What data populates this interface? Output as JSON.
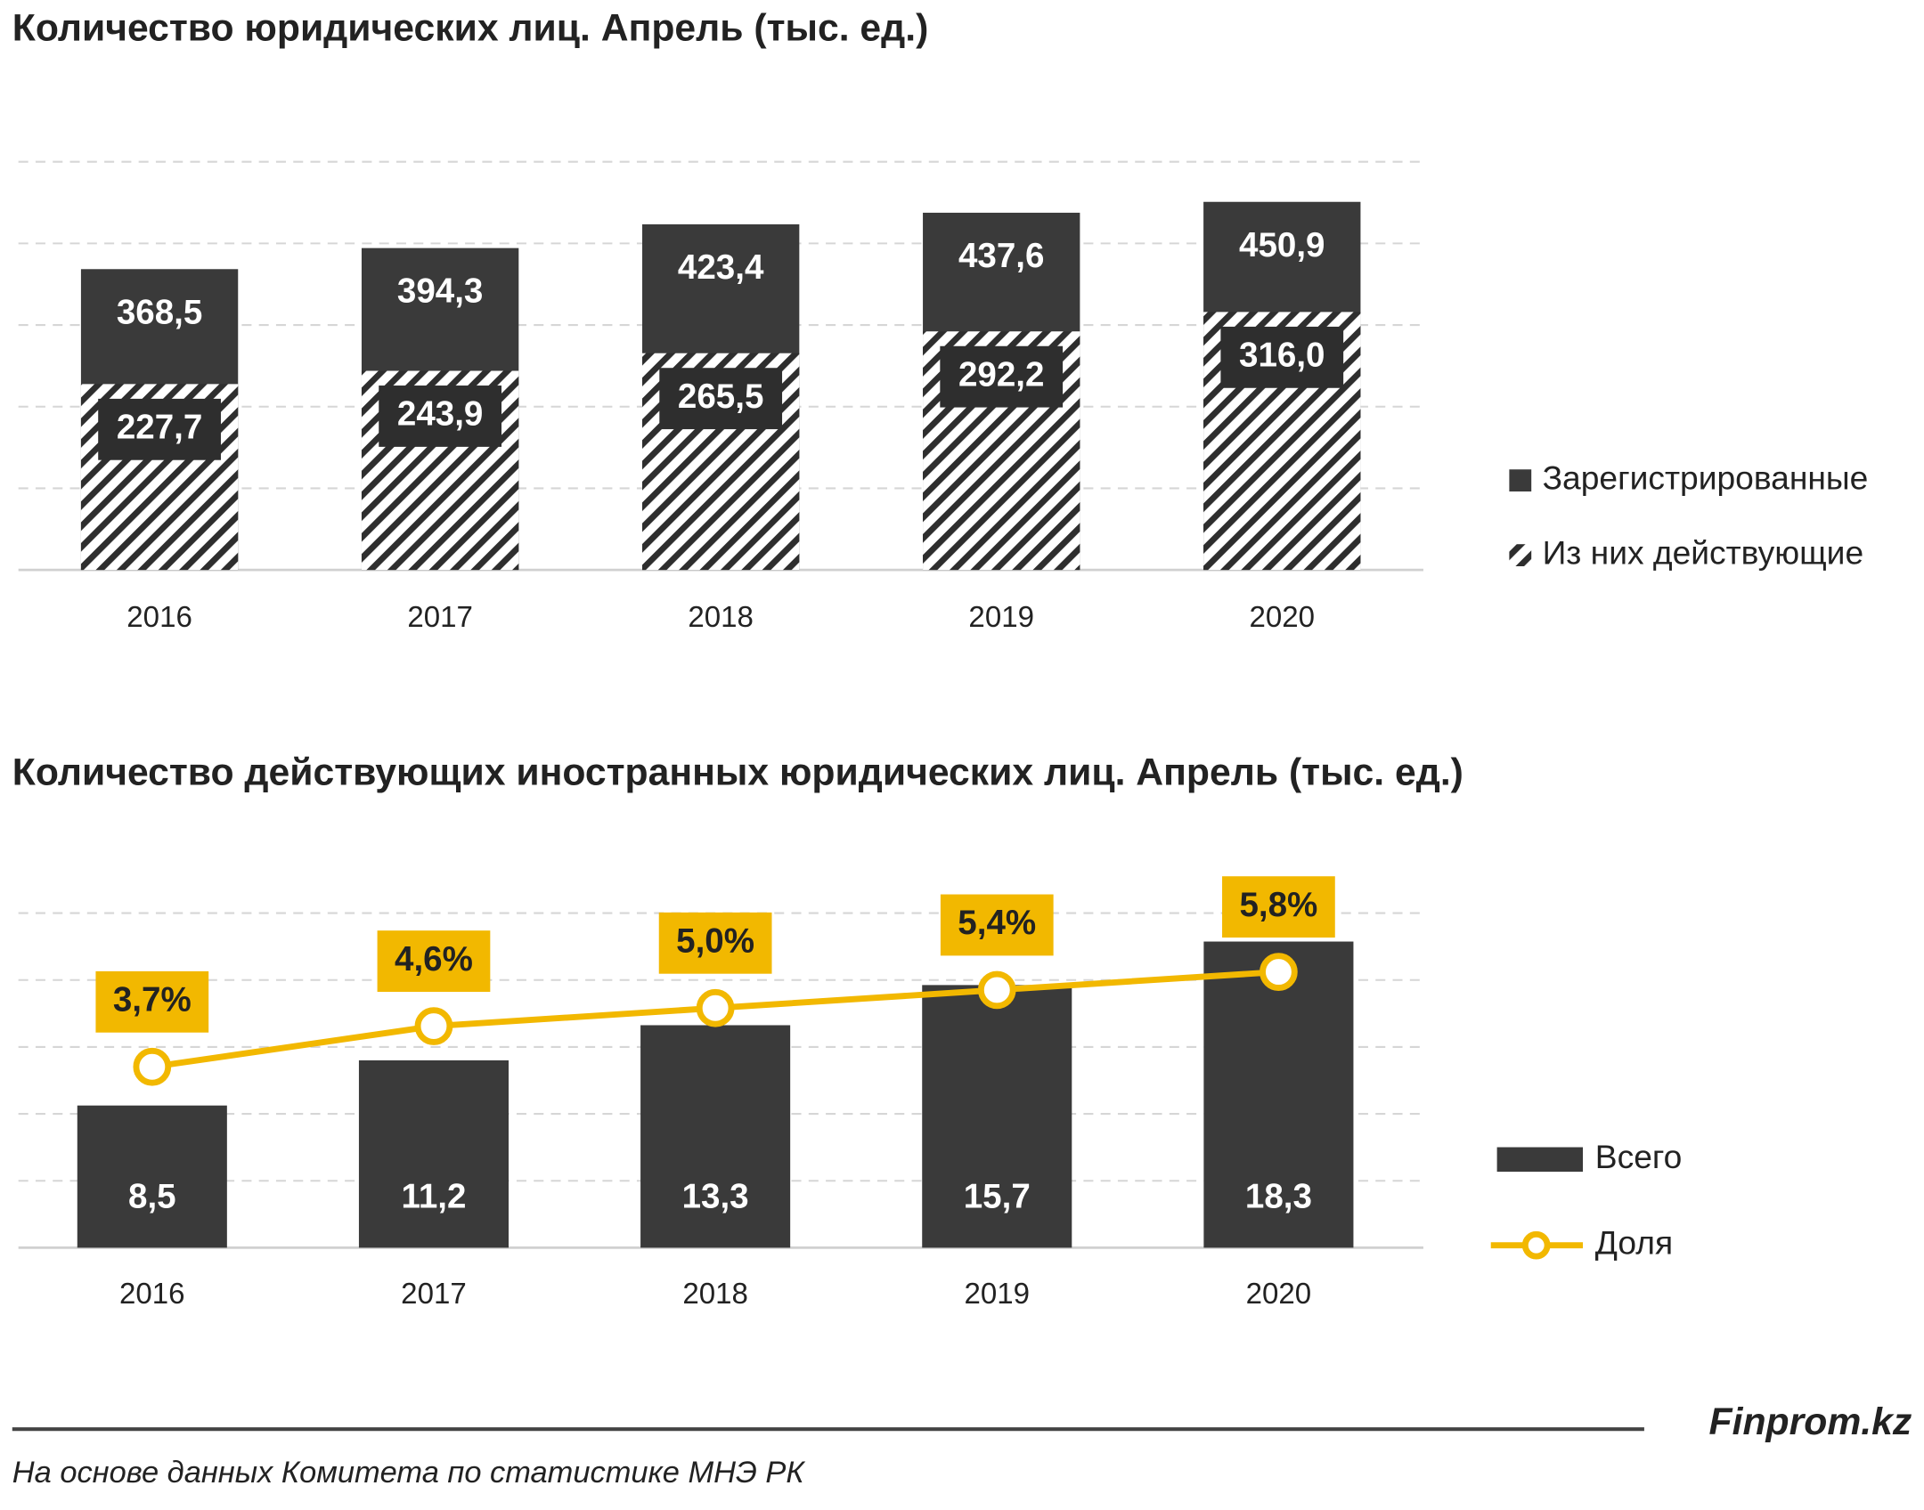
{
  "chart_data": [
    {
      "type": "overlap_bar",
      "title": "Количество юридических лиц. Апрель (тыс. ед.)",
      "categories": [
        "2016",
        "2017",
        "2018",
        "2019",
        "2020"
      ],
      "series": [
        {
          "name": "Зарегистрированные",
          "color": "#3a3a3a",
          "values": [
            368.5,
            394.3,
            423.4,
            437.6,
            450.9
          ],
          "value_labels": [
            "368,5",
            "394,3",
            "423,4",
            "437,6",
            "450,9"
          ]
        },
        {
          "name": "Из них действующие",
          "color": "#2e2e2e",
          "hatch": true,
          "values": [
            227.7,
            243.9,
            265.5,
            292.2,
            316.0
          ],
          "value_labels": [
            "227,7",
            "243,9",
            "265,5",
            "292,2",
            "316,0"
          ]
        }
      ],
      "ylim": [
        0,
        500
      ],
      "yticks": [
        0,
        100,
        200,
        300,
        400,
        500
      ],
      "grid": true,
      "legend": "right"
    },
    {
      "type": "combo",
      "title": "Количество действующих иностранных юридических лиц.  Апрель (тыс. ед.)",
      "categories": [
        "2016",
        "2017",
        "2018",
        "2019",
        "2020"
      ],
      "series": [
        {
          "name": "Всего",
          "color": "#3a3a3a",
          "values": [
            8.5,
            11.2,
            13.3,
            15.7,
            18.3
          ],
          "value_labels": [
            "8,5",
            "11,2",
            "13,3",
            "15,7",
            "18,3"
          ]
        },
        {
          "name": "Доля",
          "color": "#f2b800",
          "axis": "y2",
          "values": [
            3.7,
            4.6,
            5.0,
            5.4,
            5.8
          ],
          "value_labels": [
            "3,7%",
            "4,6%",
            "5,0%",
            "5,4%",
            "5,8%"
          ]
        }
      ],
      "ylim": [
        0,
        20
      ],
      "yticks": [
        0,
        4,
        8,
        12,
        16,
        20
      ],
      "y2lim": [
        -0.3,
        7.1
      ],
      "grid": true,
      "legend": "right"
    }
  ],
  "footer": {
    "brand": "Finprom.kz",
    "source": "На основе данных  Комитета по статистике МНЭ РК"
  }
}
